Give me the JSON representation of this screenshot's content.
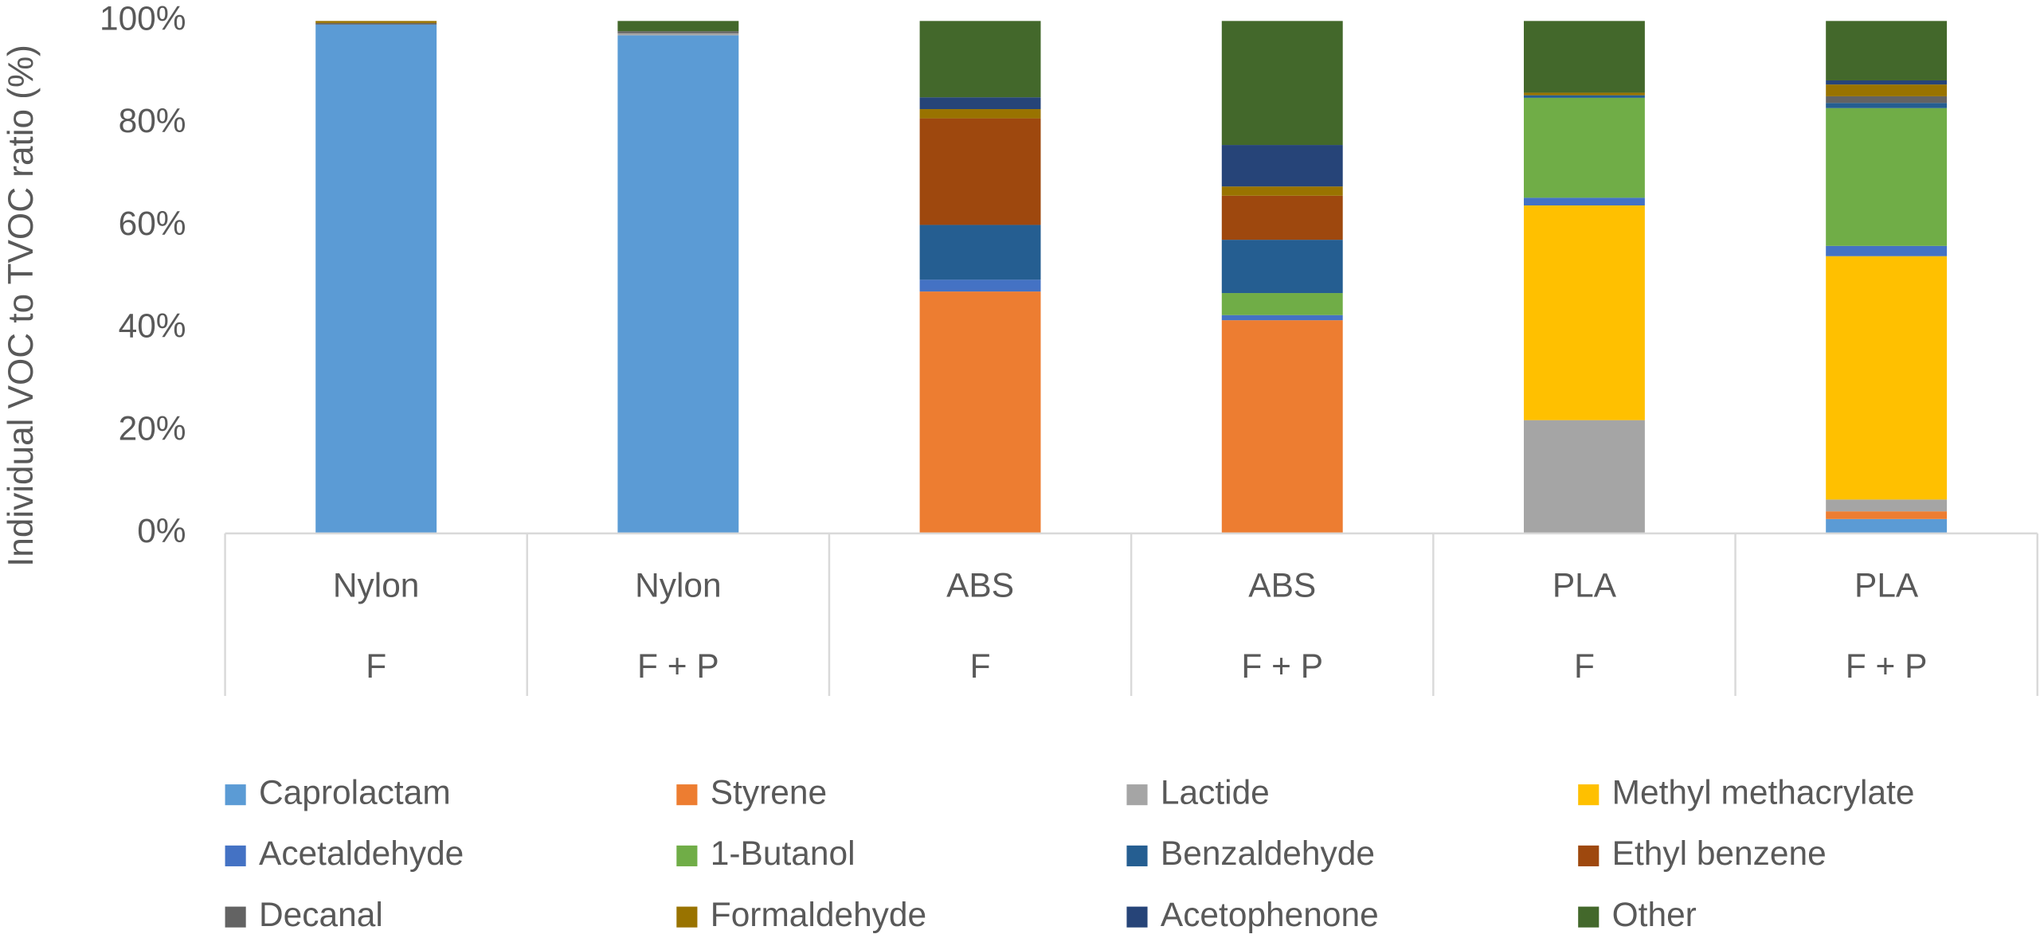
{
  "chart_data": {
    "type": "stacked-bar",
    "y_label": "Individual VOC to TVOC ratio (%)",
    "categories": [
      [
        "Nylon",
        "F"
      ],
      [
        "Nylon",
        "F + P"
      ],
      [
        "ABS",
        "F"
      ],
      [
        "ABS",
        "F + P"
      ],
      [
        "PLA",
        "F"
      ],
      [
        "PLA",
        "F + P"
      ]
    ],
    "series": [
      {
        "name": "Caprolactam",
        "color": "#5B9BD5",
        "values": [
          99.3,
          97.2,
          0,
          0,
          0,
          2.8
        ]
      },
      {
        "name": "Styrene",
        "color": "#ED7D31",
        "values": [
          0,
          0,
          47.2,
          41.6,
          0,
          1.5
        ]
      },
      {
        "name": "Lactide",
        "color": "#A5A5A5",
        "values": [
          0,
          0.4,
          0,
          0,
          22.1,
          2.3
        ]
      },
      {
        "name": "Methyl methacrylate",
        "color": "#FFC000",
        "values": [
          0,
          0,
          0,
          0,
          41.9,
          47.5
        ]
      },
      {
        "name": "Acetaldehyde",
        "color": "#4472C4",
        "values": [
          0,
          0,
          2.3,
          1.0,
          1.5,
          2.0
        ]
      },
      {
        "name": "1-Butanol",
        "color": "#70AD47",
        "values": [
          0,
          0,
          0,
          4.3,
          19.5,
          26.9
        ]
      },
      {
        "name": "Benzaldehyde",
        "color": "#255E91",
        "values": [
          0,
          0,
          10.7,
          10.4,
          0.5,
          1.0
        ]
      },
      {
        "name": "Ethyl benzene",
        "color": "#9E480E",
        "values": [
          0,
          0,
          20.8,
          8.6,
          0,
          0
        ]
      },
      {
        "name": "Decanal",
        "color": "#636363",
        "values": [
          0.3,
          0.4,
          0,
          0,
          0,
          1.3
        ]
      },
      {
        "name": "Formaldehyde",
        "color": "#997300",
        "values": [
          0.4,
          0,
          1.8,
          1.8,
          0.5,
          2.3
        ]
      },
      {
        "name": "Acetophenone",
        "color": "#264478",
        "values": [
          0,
          0,
          2.3,
          8.1,
          0,
          0.8
        ]
      },
      {
        "name": "Other",
        "color": "#43682B",
        "values": [
          0,
          2.0,
          14.9,
          24.2,
          14.0,
          11.6
        ]
      }
    ],
    "ylim": [
      0,
      100
    ],
    "yticks": [
      {
        "value": 0,
        "label": "0%"
      },
      {
        "value": 20,
        "label": "20%"
      },
      {
        "value": 40,
        "label": "40%"
      },
      {
        "value": 60,
        "label": "60%"
      },
      {
        "value": 80,
        "label": "80%"
      },
      {
        "value": 100,
        "label": "100%"
      }
    ],
    "legend": "bottom"
  }
}
